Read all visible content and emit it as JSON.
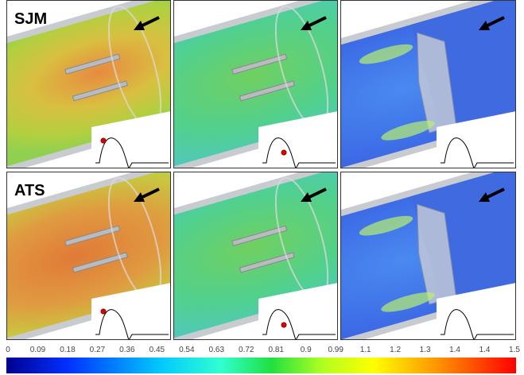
{
  "panel_labels": [
    "SJM",
    "ATS"
  ],
  "colorbar": {
    "ticks": [
      "0",
      "0.09",
      "0.18",
      "0.27",
      "0.36",
      "0.45",
      "0.54",
      "0.63",
      "0.72",
      "0.81",
      "0.9",
      "0.99",
      "1.1",
      "1.2",
      "1.3",
      "1.4",
      "1.4",
      "1.5"
    ]
  }
}
